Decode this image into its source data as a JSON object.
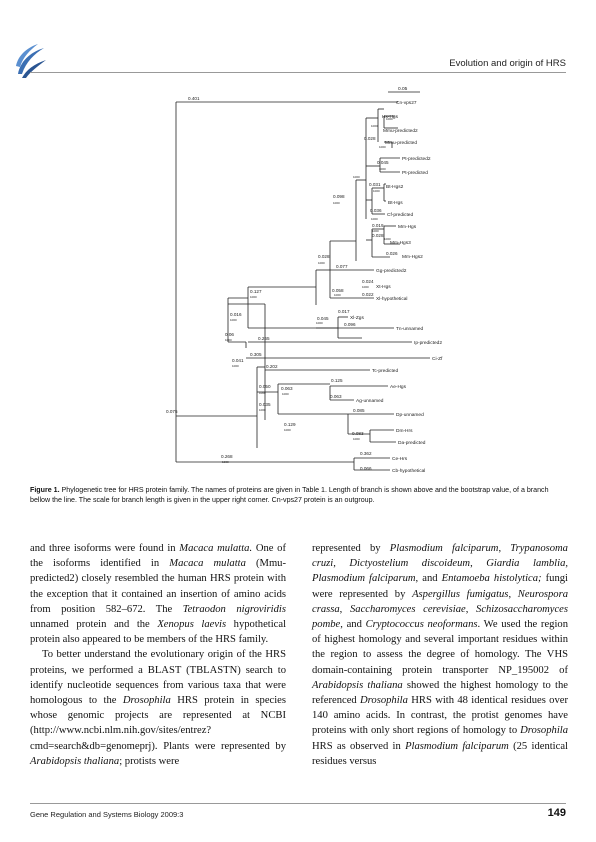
{
  "header": {
    "running_title": "Evolution and origin of HRS"
  },
  "tree": {
    "scale_value": "0.05",
    "outgroup": "Cn-vps27",
    "leaves": [
      "Hs-Hgs",
      "Mmu-predicted2",
      "Mmu-predicted",
      "Pt-predicted2",
      "Pt-predicted",
      "Bt-Hgs2",
      "Bt-Hgs",
      "Cf-predicted",
      "Mm-Hgs",
      "Mm-Hgs3",
      "Mm-Hgs2",
      "Gg-predicted2",
      "Xt-Hgs",
      "Xl-hypothetical",
      "Xl-Zgs",
      "Tn-unnamed",
      "Ip-predicted2",
      "Ci-Zf",
      "Tc-predicted",
      "Ae-Hgs",
      "Ag-unnamed",
      "Dp-unnamed",
      "Dm-Hrs",
      "Da-predicted",
      "Ce-Hrs",
      "Cb-hypothetical"
    ],
    "branch_lengths": [
      "0.401",
      "0.028",
      "0.045",
      "0.031",
      "0.098",
      "0.036",
      "0.019",
      "0.028",
      "0.026",
      "0.028",
      "0.077",
      "0.024",
      "0.058",
      "0.022",
      "0.017",
      "0.045",
      "0.096",
      "0.127",
      "0.016",
      "0.265",
      "0.06",
      "0.041",
      "0.305",
      "0.202",
      "0.125",
      "0.063",
      "0.050",
      "0.063",
      "0.035",
      "0.129",
      "0.085",
      "0.083",
      "0.075",
      "0.268",
      "0.362",
      "0.066"
    ],
    "bootstrap_values": [
      "1000",
      "1000",
      "1000",
      "1000",
      "1000",
      "1000",
      "1000",
      "1000",
      "1000",
      "1000",
      "1000",
      "1000",
      "1000",
      "1000",
      "1000",
      "1000",
      "1000",
      "1000",
      "1000",
      "1000",
      "1000",
      "1000",
      "1000",
      "1000",
      "1000",
      "1000",
      "1000",
      "1000",
      "1000",
      "1000",
      "1000",
      "1000",
      "1000",
      "1000",
      "1000",
      "1000",
      "1000",
      "1000",
      "1000",
      "1000",
      "1000",
      "1000",
      "1000",
      "1000"
    ]
  },
  "caption": {
    "label": "Figure 1.",
    "text": " Phylogenetic tree for HRS protein family. The names of proteins are given in Table 1. Length of branch is shown above and the bootstrap value, of a branch bellow the line. The scale for branch length is given in the upper right corner. Cn-vps27 protein is an outgroup."
  },
  "body": {
    "left_col": [
      {
        "t": "and three isoforms were found in "
      },
      {
        "t": "Macaca mulatta.",
        "i": true
      },
      {
        "t": " One of the isoforms identified in "
      },
      {
        "t": "Macaca mulatta",
        "i": true
      },
      {
        "t": " (Mmu-predicted2) closely resembled the human HRS protein with the exception that it contained an insertion of amino acids from position 582–672. The "
      },
      {
        "t": "Tetraodon nigroviridis",
        "i": true
      },
      {
        "t": " unnamed protein and the "
      },
      {
        "t": "Xenopus laevis",
        "i": true
      },
      {
        "t": " hypothetical protein also appeared to be members of the HRS family."
      }
    ],
    "left_col_p2": [
      {
        "t": "To better understand the evolutionary origin of the HRS proteins, we performed a BLAST (TBLASTN) search to identify nucleotide sequences from various taxa that were homologous to the "
      },
      {
        "t": "Drosophila",
        "i": true
      },
      {
        "t": " HRS protein in species whose genomic projects are represented at NCBI (http://www.ncbi.nlm.nih.gov/sites/entrez?cmd=search&db=genomeprj). Plants were represented by "
      },
      {
        "t": "Arabidopsis thaliana",
        "i": true
      },
      {
        "t": "; protists were"
      }
    ],
    "right_col": [
      {
        "t": "represented by "
      },
      {
        "t": "Plasmodium falciparum",
        "i": true
      },
      {
        "t": ", "
      },
      {
        "t": "Trypanosoma cruzi",
        "i": true
      },
      {
        "t": ", "
      },
      {
        "t": "Dictyostelium discoideum",
        "i": true
      },
      {
        "t": ", "
      },
      {
        "t": "Giardia lamblia,",
        "i": true
      },
      {
        "t": " "
      },
      {
        "t": "Plasmodium falciparum",
        "i": true
      },
      {
        "t": ", and "
      },
      {
        "t": "Entamoeba histolytica;",
        "i": true
      },
      {
        "t": " fungi were represented by "
      },
      {
        "t": "Aspergillus fumigatus",
        "i": true
      },
      {
        "t": ", "
      },
      {
        "t": "Neurospora crassa",
        "i": true
      },
      {
        "t": ", "
      },
      {
        "t": "Saccharomyces cerevisiae",
        "i": true
      },
      {
        "t": ", "
      },
      {
        "t": "Schizosaccharomyces pombe",
        "i": true
      },
      {
        "t": ", and "
      },
      {
        "t": "Cryptococcus neoformans",
        "i": true
      },
      {
        "t": ". We used the region of highest homology and several important residues within the region to assess the degree of homology. The VHS domain-containing protein transporter NP_195002 of "
      },
      {
        "t": "Arabidopsis thaliana",
        "i": true
      },
      {
        "t": " showed the highest homology to the referenced "
      },
      {
        "t": "Drosophila",
        "i": true
      },
      {
        "t": " HRS with 48 identical residues over 140 amino acids. In contrast, the protist genomes have proteins with only short regions of homology to "
      },
      {
        "t": "Drosophila",
        "i": true
      },
      {
        "t": " HRS as observed in "
      },
      {
        "t": "Plasmodium falciparum",
        "i": true
      },
      {
        "t": " (25 identical residues versus"
      }
    ]
  },
  "footer": {
    "journal": "Gene Regulation and Systems Biology 2009:3",
    "page": "149"
  }
}
